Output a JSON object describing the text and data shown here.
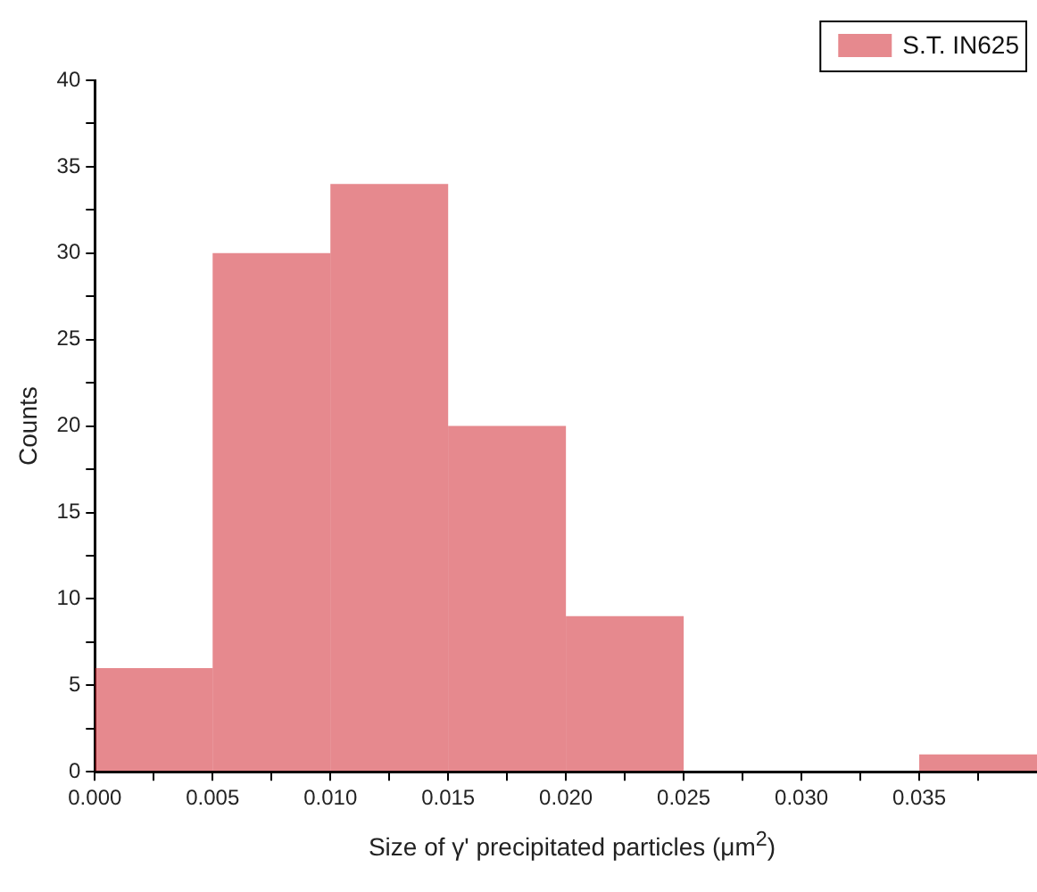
{
  "chart_data": {
    "type": "histogram",
    "xlabel": "Size of γ' precipitated particles (μm$^{2}$)",
    "ylabel": "Counts",
    "bins": [
      0,
      0.005,
      0.01,
      0.015,
      0.02,
      0.025,
      0.03,
      0.035,
      0.04
    ],
    "series": [
      {
        "name": "S.T. IN625",
        "color": "#d0212b",
        "values": [
          6,
          30,
          34,
          20,
          9,
          0,
          0,
          1
        ]
      }
    ],
    "xlim": [
      0,
      0.04
    ],
    "xticks": [
      {
        "value": 0,
        "label": "0.000"
      },
      {
        "value": 0.0025,
        "label": null
      },
      {
        "value": 0.005,
        "label": "0.005"
      },
      {
        "value": 0.0075,
        "label": null
      },
      {
        "value": 0.01,
        "label": "0.010"
      },
      {
        "value": 0.0125,
        "label": null
      },
      {
        "value": 0.015,
        "label": "0.015"
      },
      {
        "value": 0.0175,
        "label": null
      },
      {
        "value": 0.02,
        "label": "0.020"
      },
      {
        "value": 0.0225,
        "label": null
      },
      {
        "value": 0.025,
        "label": "0.025"
      },
      {
        "value": 0.0275,
        "label": null
      },
      {
        "value": 0.03,
        "label": "0.030"
      },
      {
        "value": 0.0325,
        "label": null
      },
      {
        "value": 0.035,
        "label": "0.035"
      },
      {
        "value": 0.0375,
        "label": null
      }
    ],
    "ylim": [
      0,
      40
    ],
    "yticks": [
      0,
      {
        "value": 2.5,
        "label": null
      },
      5,
      {
        "value": 7.5,
        "label": null
      },
      10,
      {
        "value": 12.5,
        "label": null
      },
      15,
      {
        "value": 17.5,
        "label": null
      },
      20,
      {
        "value": 22.5,
        "label": null
      },
      25,
      {
        "value": 27.5,
        "label": null
      },
      30,
      {
        "value": 32.5,
        "label": null
      },
      35,
      {
        "value": 37.5,
        "label": null
      },
      40
    ],
    "grid": false,
    "legend": "top right"
  }
}
